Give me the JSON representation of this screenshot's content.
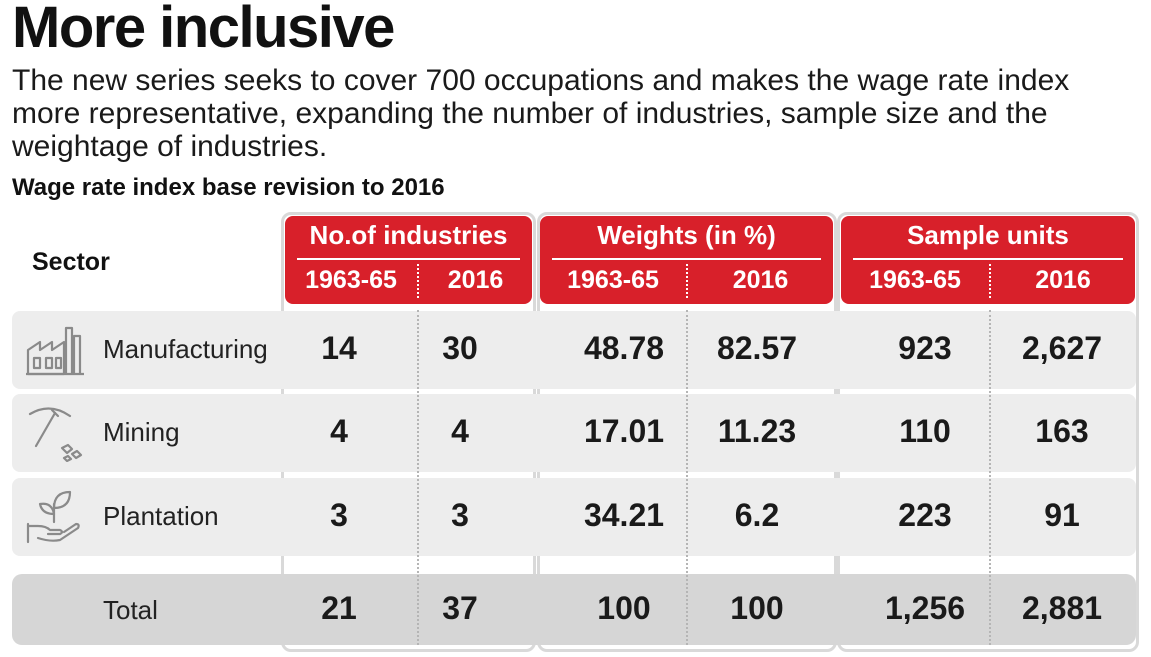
{
  "header": {
    "title": "More inclusive",
    "subtitle": "The new series seeks to cover 700 occupations and makes the wage rate index more representative, expanding the number of industries, sample size and the weightage of industries.",
    "table_title": "Wage rate index base revision to 2016"
  },
  "colors": {
    "accent": "#d8202a",
    "row_bg": "#ededed",
    "total_bg": "#d6d6d6",
    "border": "#d9d9d9"
  },
  "chart_data": {
    "type": "table",
    "title": "Wage rate index base revision to 2016",
    "row_header": "Sector",
    "groups": [
      {
        "name": "No.of industries",
        "years": [
          "1963-65",
          "2016"
        ]
      },
      {
        "name": "Weights (in %)",
        "years": [
          "1963-65",
          "2016"
        ]
      },
      {
        "name": "Sample units",
        "years": [
          "1963-65",
          "2016"
        ]
      }
    ],
    "rows": [
      {
        "sector": "Manufacturing",
        "icon": "factory-icon",
        "values": [
          "14",
          "30",
          "48.78",
          "82.57",
          "923",
          "2,627"
        ]
      },
      {
        "sector": "Mining",
        "icon": "pickaxe-icon",
        "values": [
          "4",
          "4",
          "17.01",
          "11.23",
          "110",
          "163"
        ]
      },
      {
        "sector": "Plantation",
        "icon": "plant-hand-icon",
        "values": [
          "3",
          "3",
          "34.21",
          "6.2",
          "223",
          "91"
        ]
      }
    ],
    "total": {
      "sector": "Total",
      "values": [
        "21",
        "37",
        "100",
        "100",
        "1,256",
        "2,881"
      ]
    }
  }
}
